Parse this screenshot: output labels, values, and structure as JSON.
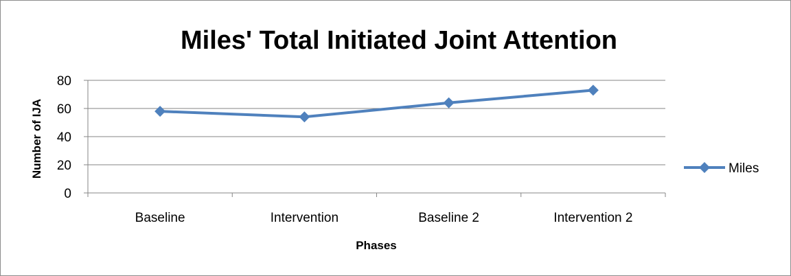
{
  "chart_data": {
    "type": "line",
    "title": "Miles' Total Initiated Joint Attention",
    "xlabel": "Phases",
    "ylabel": "Number of IJA",
    "categories": [
      "Baseline",
      "Intervention",
      "Baseline 2",
      "Intervention 2"
    ],
    "series": [
      {
        "name": "Miles",
        "values": [
          58,
          54,
          64,
          73
        ],
        "color": "#4f81bd",
        "marker": "diamond"
      }
    ],
    "ylim": [
      0,
      80
    ],
    "yticks": [
      0,
      20,
      40,
      60,
      80
    ],
    "grid": true,
    "legend_position": "right"
  }
}
